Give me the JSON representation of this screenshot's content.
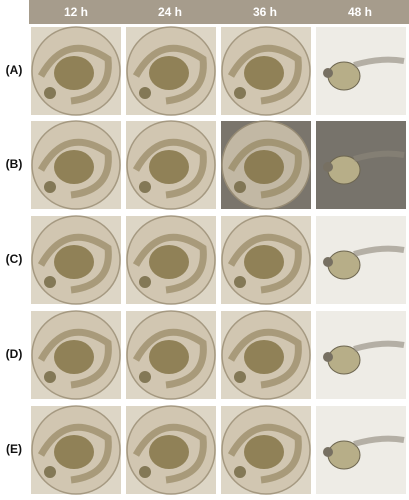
{
  "header": {
    "columns": [
      "12 h",
      "24 h",
      "36 h",
      "48 h"
    ]
  },
  "rows": [
    "(A)",
    "(B)",
    "(C)",
    "(D)",
    "(E)"
  ]
}
